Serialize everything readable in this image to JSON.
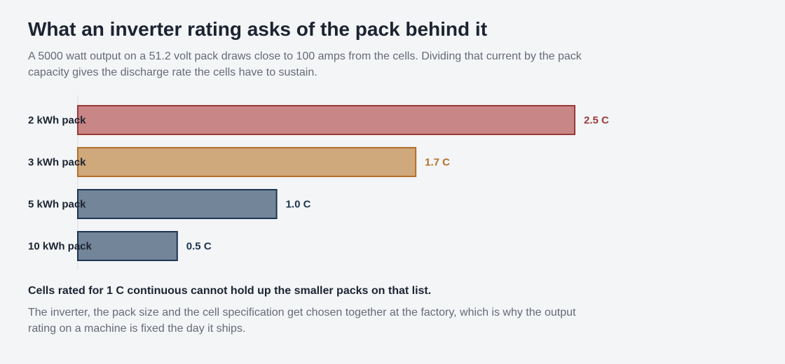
{
  "header": {
    "title": "What an inverter rating asks of the pack behind it",
    "subtitle": "A 5000 watt output on a 51.2 volt pack draws close to 100 amps from the cells. Dividing that current by the pack capacity gives the discharge rate the cells have to sustain."
  },
  "chart_data": {
    "type": "bar",
    "orientation": "horizontal",
    "title": "",
    "xlabel": "",
    "ylabel": "",
    "xlim": [
      0,
      2.5
    ],
    "grid": false,
    "categories": [
      "2 kWh pack",
      "3 kWh pack",
      "5 kWh pack",
      "10 kWh pack"
    ],
    "values": [
      2.5,
      1.7,
      1.0,
      0.5
    ],
    "value_labels": [
      "2.5 C",
      "1.7 C",
      "1.0 C",
      "0.5 C"
    ],
    "colors": [
      {
        "fill": "#c98686",
        "stroke": "#9a3a36",
        "label": "#9a3a36"
      },
      {
        "fill": "#cfa87c",
        "stroke": "#b46f2a",
        "label": "#b46f2a"
      },
      {
        "fill": "#738699",
        "stroke": "#1c3350",
        "label": "#1c3350"
      },
      {
        "fill": "#738699",
        "stroke": "#1c3350",
        "label": "#1c3350"
      }
    ],
    "axis_color": "#d8dce1"
  },
  "footer": {
    "emphasis": "Cells rated for 1 C continuous cannot hold up the smaller packs on that list.",
    "note": "The inverter, the pack size and the cell specification get chosen together at the factory, which is why the output rating on a machine is fixed the day it ships."
  }
}
